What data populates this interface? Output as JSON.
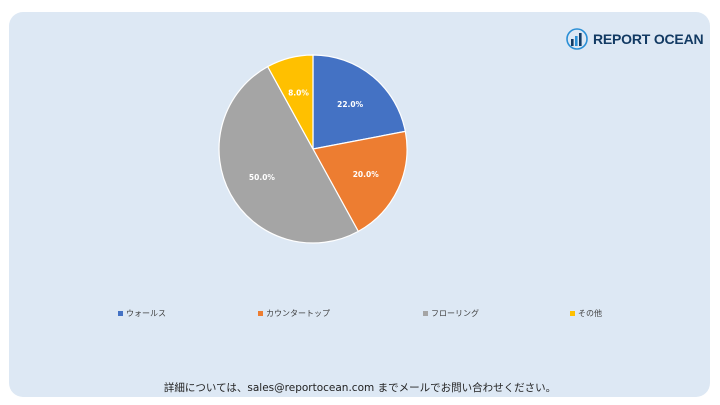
{
  "brand": {
    "name": "REPORT OCEAN",
    "icon": "bar-chart-logo-icon",
    "color": "#123a63"
  },
  "chart_data": {
    "type": "pie",
    "categories": [
      "ウォールス",
      "カウンタートップ",
      "フローリング",
      "その他"
    ],
    "values": [
      22.0,
      20.0,
      50.0,
      8.0
    ],
    "labels": [
      "22.0%",
      "20.0%",
      "50.0%",
      "8.0%"
    ],
    "colors": [
      "#4472c4",
      "#ed7d31",
      "#a5a5a5",
      "#ffc000"
    ],
    "legend_position": "bottom"
  },
  "footer": {
    "text": "詳細については、sales@reportocean.com までメールでお問い合わせください。"
  }
}
